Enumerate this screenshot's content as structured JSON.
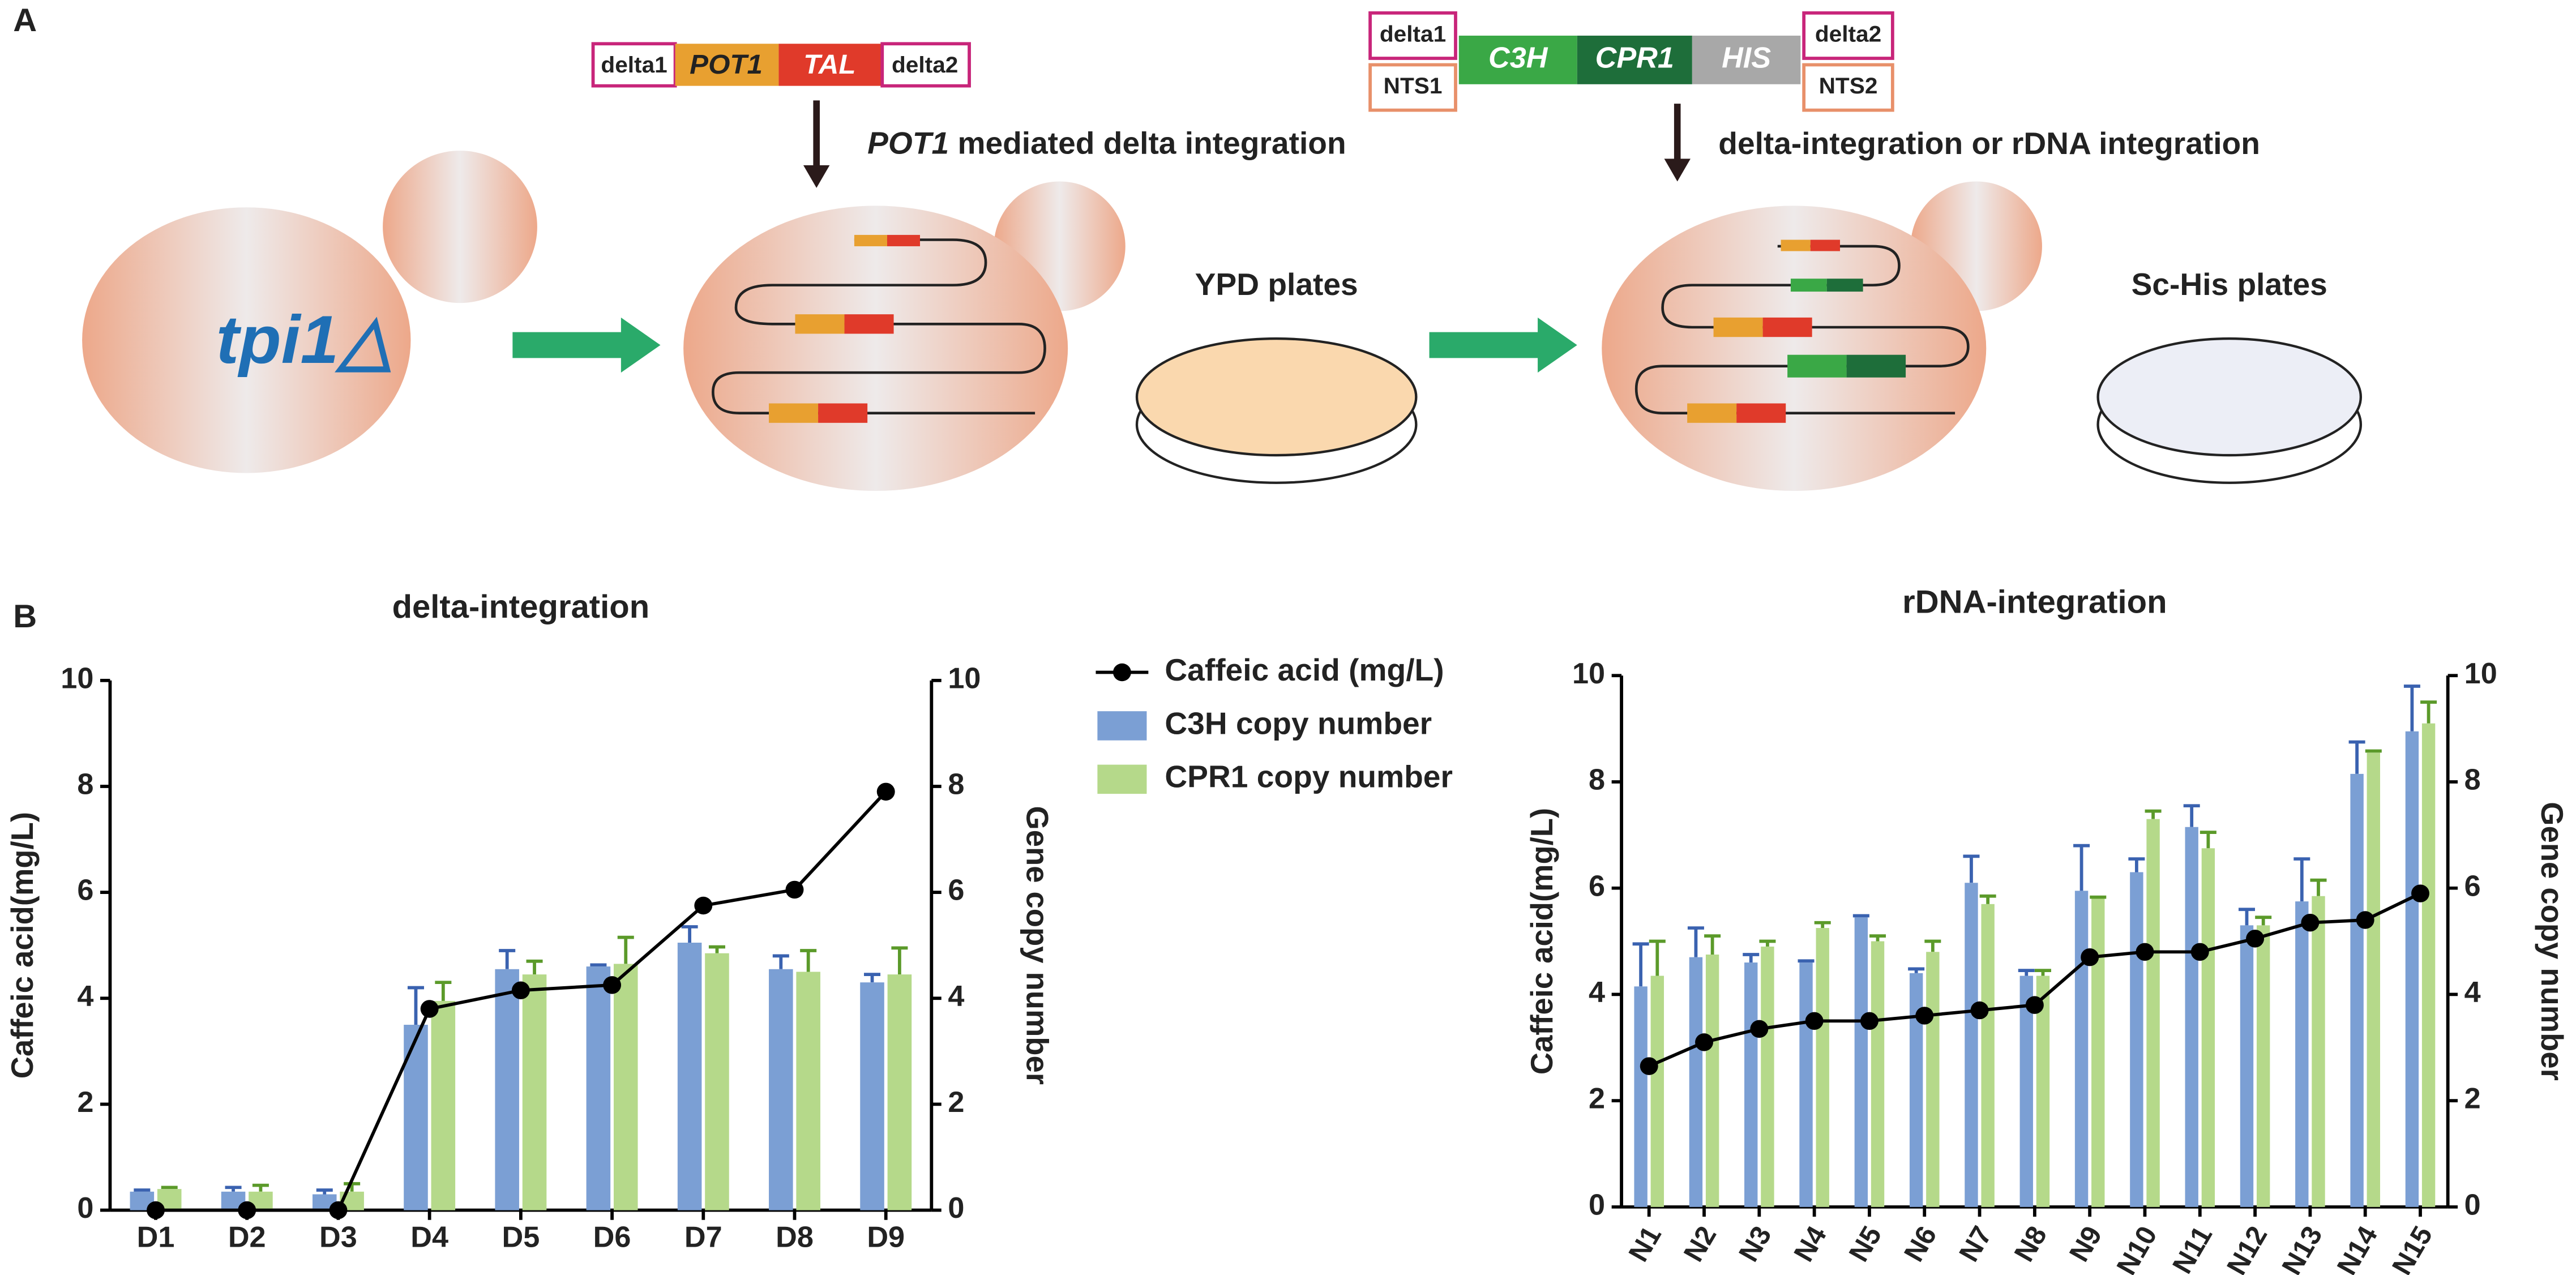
{
  "diagram": {
    "panel_a": "A",
    "panel_b": "B",
    "construct1": [
      "delta1",
      "POT1",
      "TAL",
      "delta2"
    ],
    "arrow1_label": [
      "POT1",
      " mediated delta integration"
    ],
    "cell_label": "tpi1△",
    "plate1_label": "YPD plates",
    "construct2": {
      "left": [
        "delta1",
        "NTS1"
      ],
      "parts": [
        "C3H",
        "CPR1",
        "HIS"
      ],
      "right": [
        "delta2",
        "NTS2"
      ]
    },
    "arrow2_label": "delta-integration or rDNA integration",
    "plate2_label": "Sc-His plates"
  },
  "chart_data": [
    {
      "type": "bar",
      "title": "delta-integration",
      "y_label": "Caffeic acid(mg/L)",
      "y2_label": "Gene copy number",
      "categories": [
        "D1",
        "D2",
        "D3",
        "D4",
        "D5",
        "D6",
        "D7",
        "D8",
        "D9"
      ],
      "ylim": [
        0,
        10
      ],
      "yticks": [
        0,
        2,
        4,
        6,
        8,
        10
      ],
      "y2lim": [
        0,
        10
      ],
      "y2ticks": [
        0,
        2,
        4,
        6,
        8,
        10
      ],
      "legend": "right",
      "series": [
        {
          "name": "Caffeic acid (mg/L)",
          "type": "line",
          "color": "#000000",
          "values": [
            0,
            0,
            0,
            3.8,
            4.15,
            4.25,
            5.75,
            6.05,
            7.9
          ]
        },
        {
          "name": "C3H copy number",
          "type": "bar",
          "axis": "y2",
          "color": "#7b9fd4",
          "error_color": "#3a62b0",
          "values": [
            0.35,
            0.35,
            0.3,
            3.5,
            4.55,
            4.6,
            5.05,
            4.55,
            4.3
          ],
          "errors": [
            0.03,
            0.08,
            0.08,
            0.7,
            0.35,
            0.03,
            0.3,
            0.25,
            0.15
          ]
        },
        {
          "name": "CPR1 copy number",
          "type": "bar",
          "axis": "y2",
          "color": "#b5d98a",
          "error_color": "#5b9a2a",
          "values": [
            0.4,
            0.35,
            0.35,
            3.95,
            4.45,
            4.65,
            4.85,
            4.5,
            4.45
          ],
          "errors": [
            0.03,
            0.12,
            0.15,
            0.35,
            0.25,
            0.5,
            0.12,
            0.4,
            0.5
          ]
        }
      ]
    },
    {
      "type": "bar",
      "title": "rDNA-integration",
      "y_label": "Caffeic acid(mg/L)",
      "y2_label": "Gene copy number",
      "categories": [
        "N1",
        "N2",
        "N3",
        "N4",
        "N5",
        "N6",
        "N7",
        "N8",
        "N9",
        "N10",
        "N11",
        "N12",
        "N13",
        "N14",
        "N15"
      ],
      "ylim": [
        0,
        10
      ],
      "yticks": [
        0,
        2,
        4,
        6,
        8,
        10
      ],
      "y2lim": [
        0,
        10
      ],
      "y2ticks": [
        0,
        2,
        4,
        6,
        8,
        10
      ],
      "series": [
        {
          "type": "line",
          "color": "#000000",
          "values": [
            2.65,
            3.1,
            3.35,
            3.5,
            3.5,
            3.6,
            3.7,
            3.8,
            4.7,
            4.8,
            4.8,
            5.05,
            5.35,
            5.4,
            5.9
          ]
        },
        {
          "type": "bar",
          "axis": "y2",
          "color": "#7b9fd4",
          "error_color": "#3a62b0",
          "values": [
            4.15,
            4.7,
            4.6,
            4.6,
            5.45,
            4.4,
            6.1,
            4.35,
            5.95,
            6.3,
            7.15,
            5.3,
            5.75,
            8.15,
            8.95
          ],
          "errors": [
            0.8,
            0.55,
            0.15,
            0.03,
            0.03,
            0.08,
            0.5,
            0.1,
            0.85,
            0.25,
            0.4,
            0.3,
            0.8,
            0.6,
            0.85
          ]
        },
        {
          "type": "bar",
          "axis": "y2",
          "color": "#b5d98a",
          "error_color": "#5b9a2a",
          "values": [
            4.35,
            4.75,
            4.9,
            5.25,
            5.0,
            4.8,
            5.7,
            4.35,
            5.8,
            7.3,
            6.75,
            5.3,
            5.85,
            8.55,
            9.1
          ],
          "errors": [
            0.65,
            0.35,
            0.1,
            0.1,
            0.1,
            0.2,
            0.15,
            0.1,
            0.03,
            0.15,
            0.3,
            0.15,
            0.3,
            0.03,
            0.4
          ]
        }
      ]
    }
  ]
}
